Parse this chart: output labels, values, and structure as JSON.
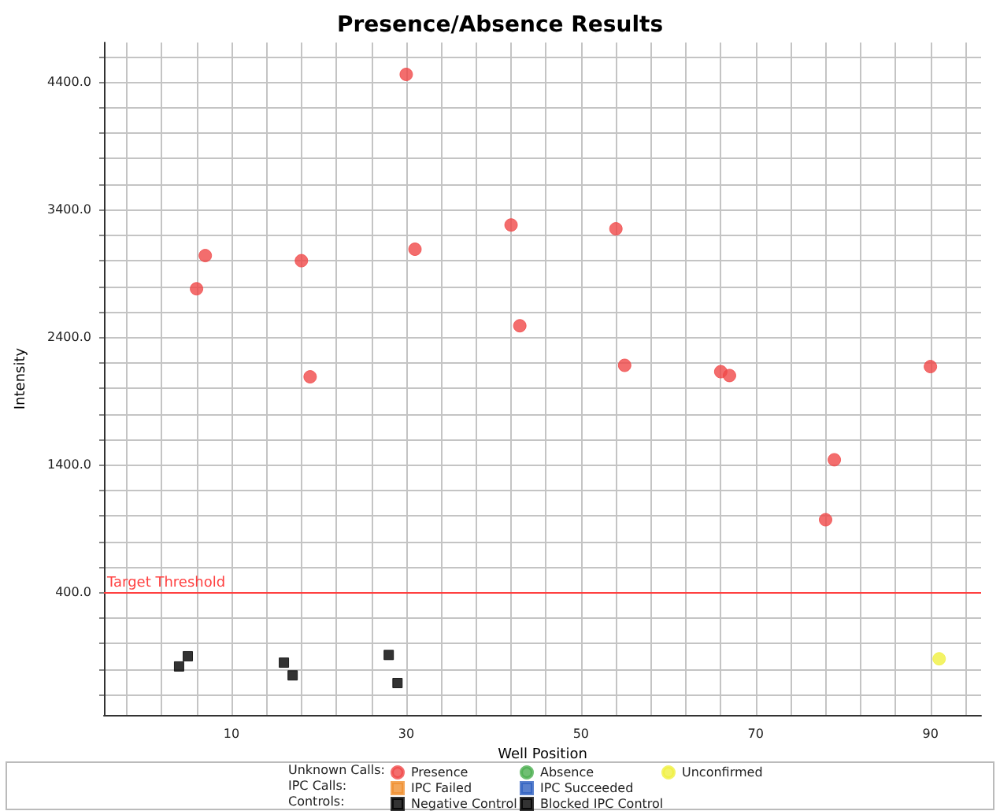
{
  "chart_data": {
    "type": "scatter",
    "title": "Presence/Absence Results",
    "xlabel": "Well Position",
    "ylabel": "Intensity",
    "xlim": [
      -4.6,
      95.8
    ],
    "ylim": [
      -560,
      4710
    ],
    "xticks": [
      {
        "value": -2,
        "label": null
      },
      {
        "value": 2,
        "label": null
      },
      {
        "value": 6,
        "label": null
      },
      10,
      {
        "value": 14,
        "label": null
      },
      {
        "value": 18,
        "label": null
      },
      {
        "value": 22,
        "label": null
      },
      {
        "value": 26,
        "label": null
      },
      30,
      {
        "value": 34,
        "label": null
      },
      {
        "value": 38,
        "label": null
      },
      {
        "value": 42,
        "label": null
      },
      {
        "value": 46,
        "label": null
      },
      50,
      {
        "value": 54,
        "label": null
      },
      {
        "value": 58,
        "label": null
      },
      {
        "value": 62,
        "label": null
      },
      {
        "value": 66,
        "label": null
      },
      70,
      {
        "value": 74,
        "label": null
      },
      {
        "value": 78,
        "label": null
      },
      {
        "value": 82,
        "label": null
      },
      {
        "value": 86,
        "label": null
      },
      90,
      {
        "value": 94,
        "label": null
      }
    ],
    "yticks": [
      {
        "value": -400,
        "label": null
      },
      {
        "value": -200,
        "label": null
      },
      {
        "value": 0,
        "label": null
      },
      {
        "value": 200,
        "label": null
      },
      {
        "value": 400,
        "label": "400.0"
      },
      {
        "value": 600,
        "label": null
      },
      {
        "value": 800,
        "label": null
      },
      {
        "value": 1000,
        "label": null
      },
      {
        "value": 1200,
        "label": null
      },
      {
        "value": 1400,
        "label": "1400.0"
      },
      {
        "value": 1600,
        "label": null
      },
      {
        "value": 1800,
        "label": null
      },
      {
        "value": 2000,
        "label": null
      },
      {
        "value": 2200,
        "label": null
      },
      {
        "value": 2400,
        "label": "2400.0"
      },
      {
        "value": 2600,
        "label": null
      },
      {
        "value": 2800,
        "label": null
      },
      {
        "value": 3000,
        "label": null
      },
      {
        "value": 3200,
        "label": null
      },
      {
        "value": 3400,
        "label": "3400.0"
      },
      {
        "value": 3600,
        "label": null
      },
      {
        "value": 3800,
        "label": null
      },
      {
        "value": 4000,
        "label": null
      },
      {
        "value": 4200,
        "label": null
      },
      {
        "value": 4400,
        "label": "4400.0"
      },
      {
        "value": 4600,
        "label": null
      }
    ],
    "grid": true,
    "legend": "bottom",
    "annotations": [
      "Unknown Calls:",
      "IPC Calls:",
      "Controls:"
    ],
    "ref_lines": [
      {
        "axis": "y",
        "value": 400,
        "label": "Target Threshold",
        "color": "#ff4040"
      }
    ],
    "series": [
      {
        "name": "Presence",
        "color": "#f04848",
        "marker": "circle",
        "x": [
          6,
          7,
          18,
          19,
          30,
          31,
          42,
          43,
          54,
          55,
          66,
          67,
          78,
          79,
          90
        ],
        "values": [
          2780,
          3040,
          3000,
          2090,
          4460,
          3090,
          3280,
          2490,
          3250,
          2180,
          2130,
          2100,
          970,
          1440,
          2170
        ]
      },
      {
        "name": "Absence",
        "color": "#4caf50",
        "marker": "circle"
      },
      {
        "name": "Unconfirmed",
        "color": "#f0f040",
        "marker": "circle",
        "x": [
          91
        ],
        "values": [
          -120
        ]
      },
      {
        "name": "IPC Failed",
        "color": "#f09030",
        "marker": "square"
      },
      {
        "name": "IPC Succeeded",
        "color": "#3060c0",
        "marker": "square"
      },
      {
        "name": "Negative Control",
        "color": "#000000",
        "marker": "square",
        "x": [
          4,
          5,
          16,
          17,
          28,
          29
        ],
        "values": [
          -180,
          -100,
          -150,
          -250,
          -90,
          -310
        ]
      },
      {
        "name": "Blocked IPC Control",
        "color": "#000000",
        "marker": "square"
      }
    ]
  }
}
